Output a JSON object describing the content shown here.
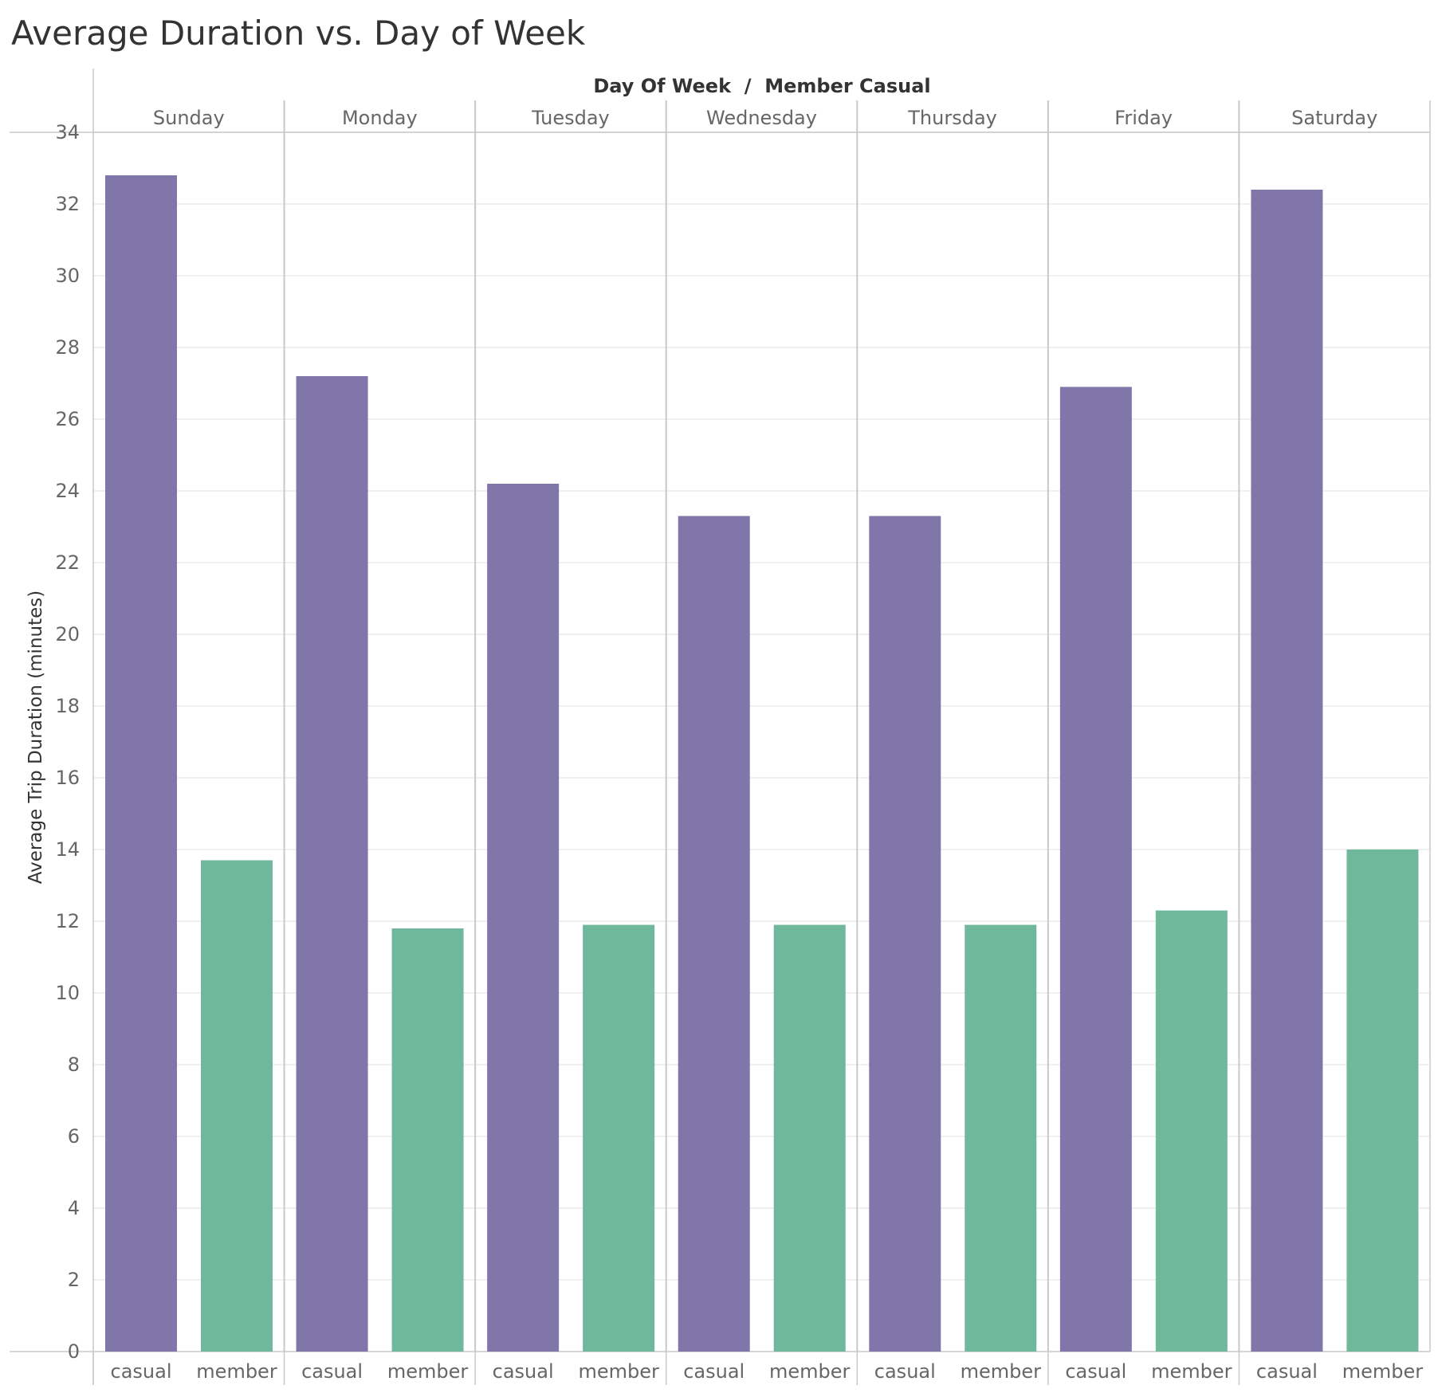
{
  "title": "Average Duration vs. Day of Week",
  "colors": {
    "casual": "#8176aa",
    "member": "#70b89b"
  },
  "chart_data": {
    "type": "bar",
    "title": "Average Duration vs. Day of Week",
    "column_header": "Day Of Week  /  Member Casual",
    "ylabel": "Average Trip Duration (minutes)",
    "xlabel": "",
    "ylim": [
      0,
      34
    ],
    "yticks": [
      0,
      2,
      4,
      6,
      8,
      10,
      12,
      14,
      16,
      18,
      20,
      22,
      24,
      26,
      28,
      30,
      32,
      34
    ],
    "grid": true,
    "categories": [
      "Sunday",
      "Monday",
      "Tuesday",
      "Wednesday",
      "Thursday",
      "Friday",
      "Saturday"
    ],
    "sub_categories": [
      "casual",
      "member"
    ],
    "series": [
      {
        "name": "casual",
        "values": [
          32.8,
          27.2,
          24.2,
          23.3,
          23.3,
          26.9,
          32.4
        ]
      },
      {
        "name": "member",
        "values": [
          13.7,
          11.8,
          11.9,
          11.9,
          11.9,
          12.3,
          14.0
        ]
      }
    ]
  }
}
